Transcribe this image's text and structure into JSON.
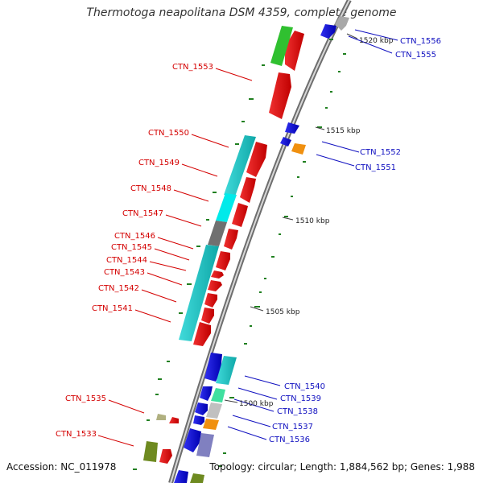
{
  "title": "Thermotoga neapolitana DSM 4359, complete genome",
  "footer": {
    "accession": "Accession: NC_011978",
    "summary": "Topology: circular; Length: 1,884,562 bp; Genes: 1,988"
  },
  "ticks": [
    "1520 kbp",
    "1515 kbp",
    "1510 kbp",
    "1505 kbp",
    "1500 kbp"
  ],
  "labels_reverse": [
    "CTN_1553",
    "CTN_1550",
    "CTN_1549",
    "CTN_1548",
    "CTN_1547",
    "CTN_1546",
    "CTN_1545",
    "CTN_1544",
    "CTN_1543",
    "CTN_1542",
    "CTN_1541",
    "CTN_1535",
    "CTN_1533"
  ],
  "labels_forward": [
    "CTN_1556",
    "CTN_1555",
    "CTN_1552",
    "CTN_1551",
    "CTN_1540",
    "CTN_1539",
    "CTN_1538",
    "CTN_1537",
    "CTN_1536"
  ],
  "colors": {
    "reverse_cds": "#e01010",
    "forward_cds": "#1414e0",
    "cog_cyan": "#1ec8c8",
    "cog_green": "#30c030",
    "cog_gray": "#707070",
    "cog_orange": "#f09010",
    "cog_olive": "#6e8a20",
    "backbone": "#a0a0a0",
    "gc_tick": "#208020",
    "label_red": "#d40000",
    "label_blue": "#1010c0"
  }
}
